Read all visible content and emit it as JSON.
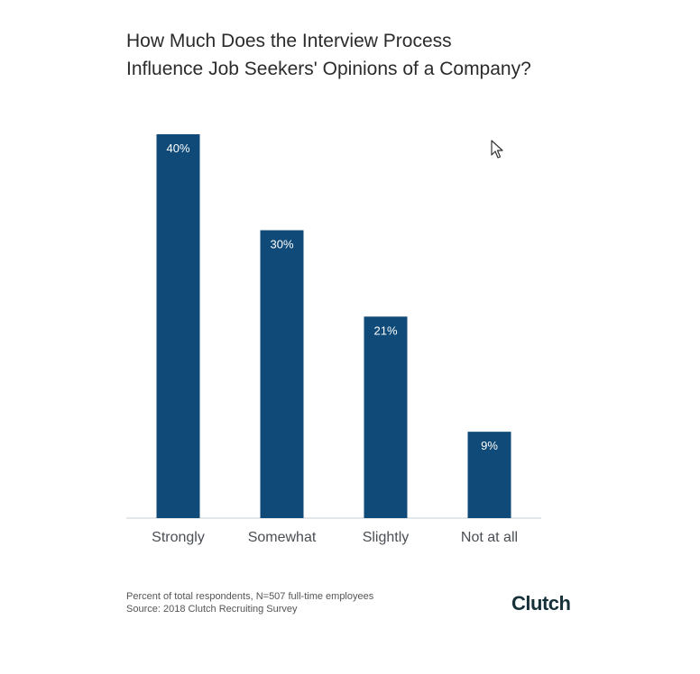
{
  "chart_data": {
    "type": "bar",
    "title_lines": [
      "How Much Does the Interview Process",
      "Influence Job Seekers' Opinions of a Company?"
    ],
    "categories": [
      "Strongly",
      "Somewhat",
      "Slightly",
      "Not at all"
    ],
    "values": [
      40,
      30,
      21,
      9
    ],
    "value_labels": [
      "40%",
      "30%",
      "21%",
      "9%"
    ],
    "ylim": [
      0,
      40
    ],
    "grid": false,
    "bar_color": "#0f4a78",
    "baseline_color": "#c8cfd6",
    "label_color": "#4a4f55"
  },
  "footnote": {
    "line1": "Percent of total respondents, N=507 full-time employees",
    "line2": "Source: 2018 Clutch Recruiting Survey"
  },
  "brand": "Clutch",
  "cursor_icon": "mouse-pointer-icon"
}
